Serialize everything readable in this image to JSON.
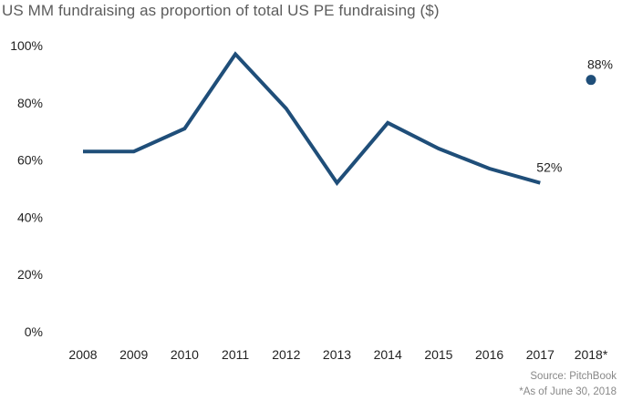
{
  "chart_data": {
    "type": "line",
    "title": "US MM fundraising as proportion of total US PE fundraising ($)",
    "categories": [
      "2008",
      "2009",
      "2010",
      "2011",
      "2012",
      "2013",
      "2014",
      "2015",
      "2016",
      "2017",
      "2018*"
    ],
    "series": [
      {
        "values": [
          63,
          63,
          71,
          97,
          78,
          52,
          73,
          64,
          57,
          52,
          null
        ],
        "style": "line"
      },
      {
        "values": [
          null,
          null,
          null,
          null,
          null,
          null,
          null,
          null,
          null,
          null,
          88
        ],
        "style": "point"
      }
    ],
    "data_labels": [
      {
        "category": "2017",
        "text": "52%"
      },
      {
        "category": "2018*",
        "text": "88%"
      }
    ],
    "yticks": [
      "0%",
      "20%",
      "40%",
      "60%",
      "80%",
      "100%"
    ],
    "ylim": [
      0,
      100
    ],
    "grid": false,
    "line_color": "#1f4e79"
  },
  "footer": {
    "source": "Source: PitchBook",
    "note": "*As of June 30, 2018"
  }
}
